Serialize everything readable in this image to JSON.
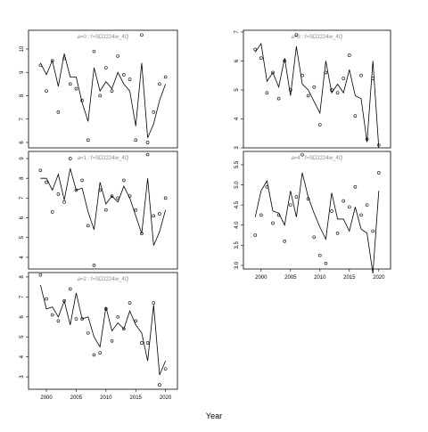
{
  "xlabel": "Year",
  "chart_data": [
    {
      "type": "line",
      "title": "a=0 : f=SD2224w_4Q",
      "x": [
        1999,
        2000,
        2001,
        2002,
        2003,
        2004,
        2005,
        2006,
        2007,
        2008,
        2009,
        2010,
        2011,
        2012,
        2013,
        2014,
        2015,
        2016,
        2017,
        2018,
        2019,
        2020
      ],
      "series": [
        {
          "mode": "markers",
          "color": "#000000",
          "values": [
            9.3,
            8.2,
            9.5,
            7.3,
            9.6,
            8.5,
            8.3,
            7.8,
            6.1,
            9.9,
            8.0,
            9.2,
            8.2,
            9.7,
            8.9,
            8.7,
            6.1,
            10.6,
            6.0,
            7.3,
            8.5,
            8.8
          ]
        },
        {
          "mode": "lines",
          "color": "#000000",
          "values": [
            9.4,
            8.9,
            9.5,
            8.4,
            9.8,
            8.8,
            8.8,
            7.7,
            6.9,
            9.2,
            8.2,
            8.6,
            8.3,
            9.0,
            8.5,
            8.2,
            6.7,
            9.4,
            6.2,
            6.8,
            7.8,
            8.5
          ]
        }
      ],
      "xlim": [
        1997,
        2022
      ],
      "ylim": [
        5.77,
        10.8
      ],
      "yticks": [
        6,
        7,
        8,
        9,
        10
      ]
    },
    {
      "type": "line",
      "title": "a=1 : f=SD2224w_4Q",
      "x": [
        1999,
        2000,
        2001,
        2002,
        2003,
        2004,
        2005,
        2006,
        2007,
        2008,
        2009,
        2010,
        2011,
        2012,
        2013,
        2014,
        2015,
        2016,
        2017,
        2018,
        2019,
        2020
      ],
      "series": [
        {
          "mode": "markers",
          "color": "#000000",
          "values": [
            8.4,
            7.8,
            6.3,
            7.2,
            6.8,
            9.0,
            7.4,
            7.9,
            5.6,
            3.6,
            7.4,
            6.4,
            7.1,
            7.0,
            7.9,
            7.1,
            6.4,
            5.2,
            9.2,
            6.1,
            6.2,
            7.0
          ]
        },
        {
          "mode": "lines",
          "color": "#000000",
          "values": [
            8.0,
            8.0,
            7.4,
            8.2,
            6.9,
            8.5,
            7.4,
            7.5,
            6.3,
            5.4,
            7.8,
            6.7,
            7.1,
            6.8,
            7.6,
            7.0,
            6.1,
            5.2,
            8.0,
            4.6,
            5.3,
            6.4
          ]
        }
      ],
      "xlim": [
        1997,
        2022
      ],
      "ylim": [
        3.41,
        9.36
      ],
      "yticks": [
        4,
        5,
        6,
        7,
        8,
        9
      ]
    },
    {
      "type": "line",
      "title": "a=2 : f=SD2224w_4Q",
      "x": [
        1999,
        2000,
        2001,
        2002,
        2003,
        2004,
        2005,
        2006,
        2007,
        2008,
        2009,
        2010,
        2011,
        2012,
        2013,
        2014,
        2015,
        2016,
        2017,
        2018,
        2019,
        2020
      ],
      "series": [
        {
          "mode": "markers",
          "color": "#000000",
          "values": [
            8.1,
            6.9,
            6.1,
            5.8,
            6.8,
            7.4,
            5.9,
            5.9,
            5.2,
            4.1,
            4.2,
            6.4,
            4.8,
            6.0,
            5.4,
            6.7,
            5.8,
            4.7,
            4.7,
            6.7,
            2.6,
            3.4
          ]
        },
        {
          "mode": "lines",
          "color": "#000000",
          "values": [
            7.6,
            6.4,
            6.5,
            6.0,
            6.8,
            5.6,
            7.2,
            5.9,
            6.0,
            5.0,
            4.5,
            6.5,
            5.3,
            5.7,
            5.4,
            6.3,
            5.6,
            5.2,
            3.8,
            6.6,
            3.1,
            3.8
          ]
        }
      ],
      "xlim": [
        1997,
        2022
      ],
      "ylim": [
        2.38,
        8.22
      ],
      "yticks": [
        3,
        4,
        5,
        6,
        7,
        8
      ],
      "xticks": [
        2000,
        2005,
        2010,
        2015,
        2020
      ]
    },
    {
      "type": "line",
      "title": "a=3 : f=SD2224w_4Q",
      "x": [
        1999,
        2000,
        2001,
        2002,
        2003,
        2004,
        2005,
        2006,
        2007,
        2008,
        2009,
        2010,
        2011,
        2012,
        2013,
        2014,
        2015,
        2016,
        2017,
        2018,
        2019,
        2020
      ],
      "series": [
        {
          "mode": "markers",
          "color": "#000000",
          "values": [
            6.4,
            6.1,
            4.9,
            5.6,
            4.7,
            6.0,
            5.0,
            6.9,
            5.5,
            4.8,
            5.1,
            3.8,
            5.6,
            5.0,
            4.9,
            5.4,
            6.2,
            4.1,
            5.5,
            3.3,
            5.4,
            3.1
          ]
        },
        {
          "mode": "lines",
          "color": "#000000",
          "values": [
            6.3,
            6.6,
            5.3,
            5.6,
            5.1,
            6.1,
            4.8,
            6.5,
            5.2,
            5.0,
            4.6,
            4.2,
            6.0,
            4.9,
            5.2,
            4.9,
            5.7,
            4.8,
            4.7,
            3.2,
            6.0,
            3.0
          ]
        }
      ],
      "xlim": [
        1997,
        2022
      ],
      "ylim": [
        3.0,
        7.06
      ],
      "yticks": [
        3,
        4,
        5,
        6,
        7
      ]
    },
    {
      "type": "line",
      "title": "a=4 : f=SD2224w_4Q",
      "x": [
        1999,
        2000,
        2001,
        2002,
        2003,
        2004,
        2005,
        2006,
        2007,
        2008,
        2009,
        2010,
        2011,
        2012,
        2013,
        2014,
        2015,
        2016,
        2017,
        2018,
        2019,
        2020
      ],
      "series": [
        {
          "mode": "markers",
          "color": "#000000",
          "values": [
            3.75,
            4.25,
            4.95,
            4.05,
            4.25,
            3.6,
            4.5,
            4.7,
            5.75,
            4.65,
            3.7,
            3.25,
            3.05,
            4.35,
            3.8,
            4.6,
            4.45,
            4.95,
            4.25,
            4.5,
            3.85,
            5.3
          ]
        },
        {
          "mode": "lines",
          "color": "#000000",
          "values": [
            4.2,
            4.85,
            5.1,
            4.35,
            4.3,
            4.0,
            4.85,
            4.2,
            5.3,
            4.7,
            4.3,
            3.95,
            3.65,
            4.8,
            4.15,
            4.15,
            3.85,
            4.45,
            3.9,
            3.8,
            2.8,
            4.85
          ]
        }
      ],
      "xlim": [
        1997,
        2022
      ],
      "ylim": [
        2.91,
        5.83
      ],
      "yticks": [
        {
          "value": 3,
          "label": "3.0"
        },
        3.5,
        {
          "value": 4,
          "label": "4.0"
        },
        4.5,
        {
          "value": 5,
          "label": "5.0"
        },
        5.5
      ],
      "xticks": [
        2000,
        2005,
        2010,
        2015,
        2020
      ]
    }
  ]
}
